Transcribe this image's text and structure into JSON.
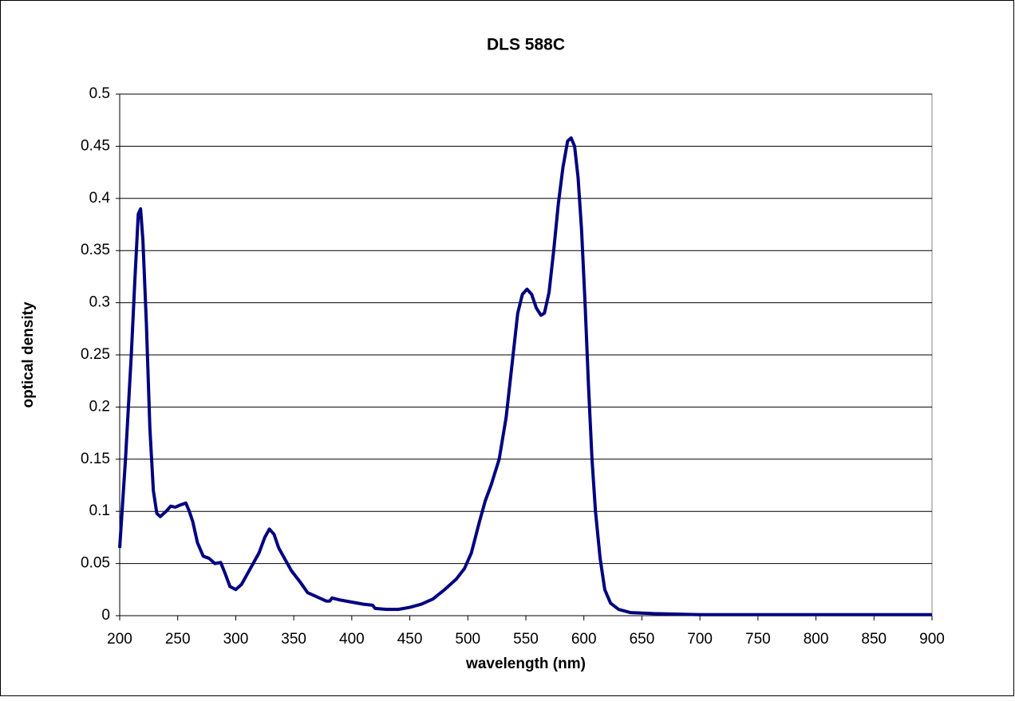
{
  "chart_data": {
    "type": "line",
    "title": "DLS 588C",
    "xlabel": "wavelength (nm)",
    "ylabel": "optical density",
    "x": [
      200,
      205,
      210,
      213,
      216,
      218,
      220,
      223,
      226,
      229,
      232,
      235,
      240,
      244,
      248,
      252,
      257,
      260,
      263,
      267,
      272,
      277,
      282,
      287,
      291,
      295,
      300,
      305,
      310,
      315,
      320,
      325,
      329,
      333,
      337,
      342,
      348,
      355,
      362,
      370,
      378,
      381,
      383,
      390,
      400,
      410,
      418,
      420,
      430,
      440,
      450,
      460,
      470,
      480,
      490,
      497,
      503,
      510,
      515,
      520,
      527,
      533,
      538,
      543,
      547,
      551,
      555,
      559,
      563,
      566,
      570,
      574,
      578,
      582,
      586,
      589,
      592,
      595,
      598,
      601,
      604,
      607,
      610,
      614,
      618,
      623,
      630,
      640,
      660,
      700,
      800,
      900
    ],
    "series": [
      {
        "name": "DLS 588C",
        "color": "#000080",
        "values": [
          0.065,
          0.15,
          0.25,
          0.32,
          0.385,
          0.39,
          0.36,
          0.28,
          0.18,
          0.12,
          0.098,
          0.095,
          0.1,
          0.105,
          0.104,
          0.106,
          0.108,
          0.1,
          0.09,
          0.07,
          0.057,
          0.055,
          0.05,
          0.051,
          0.04,
          0.028,
          0.025,
          0.03,
          0.04,
          0.05,
          0.06,
          0.075,
          0.083,
          0.078,
          0.065,
          0.055,
          0.043,
          0.033,
          0.022,
          0.018,
          0.014,
          0.014,
          0.017,
          0.015,
          0.013,
          0.011,
          0.01,
          0.007,
          0.006,
          0.006,
          0.008,
          0.011,
          0.016,
          0.025,
          0.035,
          0.045,
          0.06,
          0.09,
          0.11,
          0.125,
          0.15,
          0.19,
          0.24,
          0.29,
          0.308,
          0.313,
          0.308,
          0.295,
          0.288,
          0.29,
          0.31,
          0.35,
          0.395,
          0.43,
          0.455,
          0.458,
          0.45,
          0.42,
          0.37,
          0.3,
          0.22,
          0.15,
          0.1,
          0.055,
          0.025,
          0.012,
          0.006,
          0.003,
          0.002,
          0.001,
          0.001,
          0.001
        ]
      }
    ],
    "xlim": [
      200,
      900
    ],
    "xticks": [
      200,
      250,
      300,
      350,
      400,
      450,
      500,
      550,
      600,
      650,
      700,
      750,
      800,
      850,
      900
    ],
    "ylim": [
      0,
      0.5
    ],
    "yticks": [
      0,
      0.05,
      0.1,
      0.15,
      0.2,
      0.25,
      0.3,
      0.35,
      0.4,
      0.45,
      0.5
    ],
    "grid": true
  }
}
